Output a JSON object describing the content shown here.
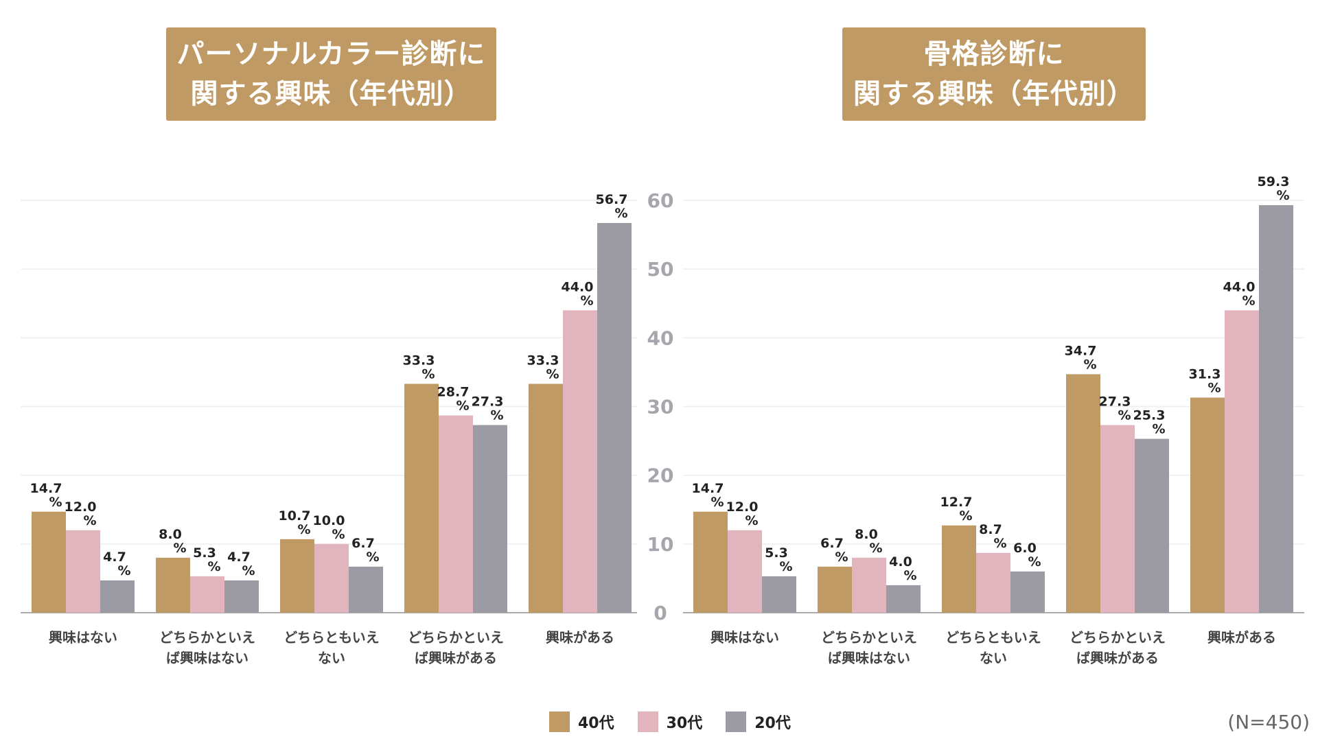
{
  "colors": {
    "title_bg": "#c09a64",
    "s40": "#c09a64",
    "s30": "#e2b4bd",
    "s20": "#9c9ba4",
    "grid": "#eeeeee",
    "axis": "#aaaaaa",
    "tick_label": "#a6a6ad"
  },
  "chart_data": [
    {
      "type": "bar",
      "title": [
        "パーソナルカラー診断に",
        "関する興味（年代別）"
      ],
      "categories": [
        [
          "興味はない"
        ],
        [
          "どちらかといえ",
          "ば興味はない"
        ],
        [
          "どちらともいえ",
          "ない"
        ],
        [
          "どちらかといえ",
          "ば興味がある"
        ],
        [
          "興味がある"
        ]
      ],
      "series": [
        {
          "name": "40代",
          "color_key": "s40",
          "values": [
            14.7,
            8.0,
            10.7,
            33.3,
            33.3
          ]
        },
        {
          "name": "30代",
          "color_key": "s30",
          "values": [
            12.0,
            5.3,
            10.0,
            28.7,
            44.0
          ]
        },
        {
          "name": "20代",
          "color_key": "s20",
          "values": [
            4.7,
            4.7,
            6.7,
            27.3,
            56.7
          ]
        }
      ],
      "unit": "%",
      "ylim": [
        0,
        60
      ],
      "yticks": [
        0,
        10,
        20,
        30,
        40,
        50,
        60
      ],
      "show_y_ticks": false
    },
    {
      "type": "bar",
      "title": [
        "骨格診断に",
        "関する興味（年代別）"
      ],
      "categories": [
        [
          "興味はない"
        ],
        [
          "どちらかといえ",
          "ば興味はない"
        ],
        [
          "どちらともいえ",
          "ない"
        ],
        [
          "どちらかといえ",
          "ば興味がある"
        ],
        [
          "興味がある"
        ]
      ],
      "series": [
        {
          "name": "40代",
          "color_key": "s40",
          "values": [
            14.7,
            6.7,
            12.7,
            34.7,
            31.3
          ]
        },
        {
          "name": "30代",
          "color_key": "s30",
          "values": [
            12.0,
            8.0,
            8.7,
            27.3,
            44.0
          ]
        },
        {
          "name": "20代",
          "color_key": "s20",
          "values": [
            5.3,
            4.0,
            6.0,
            25.3,
            59.3
          ]
        }
      ],
      "unit": "%",
      "ylim": [
        0,
        60
      ],
      "yticks": [
        0,
        10,
        20,
        30,
        40,
        50,
        60
      ],
      "show_y_ticks": true
    }
  ],
  "legend": [
    {
      "label": "40代",
      "color_key": "s40"
    },
    {
      "label": "30代",
      "color_key": "s30"
    },
    {
      "label": "20代",
      "color_key": "s20"
    }
  ],
  "note": "(N=450)"
}
